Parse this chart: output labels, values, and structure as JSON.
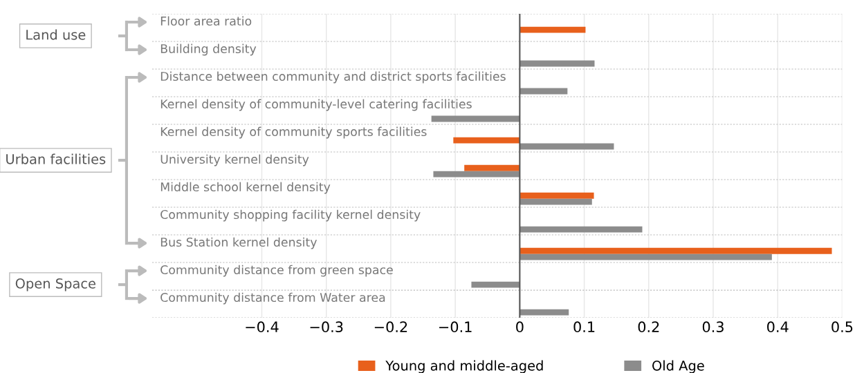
{
  "chart_data": {
    "type": "bar",
    "orientation": "horizontal",
    "categories": [
      "Floor area ratio",
      "Building density",
      "Distance between community and district sports facilities",
      "Kernel density of community-level catering facilities",
      "Kernel density of community sports facilities",
      "University kernel density",
      "Middle school kernel density",
      "Community shopping facility kernel density",
      "Bus Station kernel density",
      "Community distance from green space",
      "Community distance from Water area"
    ],
    "series": [
      {
        "name": "Young and middle-aged",
        "color": "#e8601c",
        "values": [
          0.102,
          null,
          null,
          null,
          -0.103,
          -0.086,
          0.115,
          null,
          0.484,
          null,
          null
        ]
      },
      {
        "name": "Old Age",
        "color": "#8c8c8c",
        "values": [
          null,
          0.116,
          0.074,
          -0.137,
          0.146,
          -0.134,
          0.112,
          0.19,
          0.391,
          -0.075,
          0.076
        ]
      }
    ],
    "xlim": [
      -0.57,
      0.5
    ],
    "xticks": [
      {
        "value": -0.4,
        "label": "−0.4"
      },
      {
        "value": -0.3,
        "label": "−0.3"
      },
      {
        "value": -0.2,
        "label": "−0.2"
      },
      {
        "value": -0.1,
        "label": "−0.1"
      },
      0,
      0.1,
      0.2,
      0.3,
      0.4,
      0.5
    ],
    "annotations": [
      "Land use",
      "Urban facilities",
      "Open Space"
    ],
    "grid": true,
    "legend": "bottom"
  }
}
